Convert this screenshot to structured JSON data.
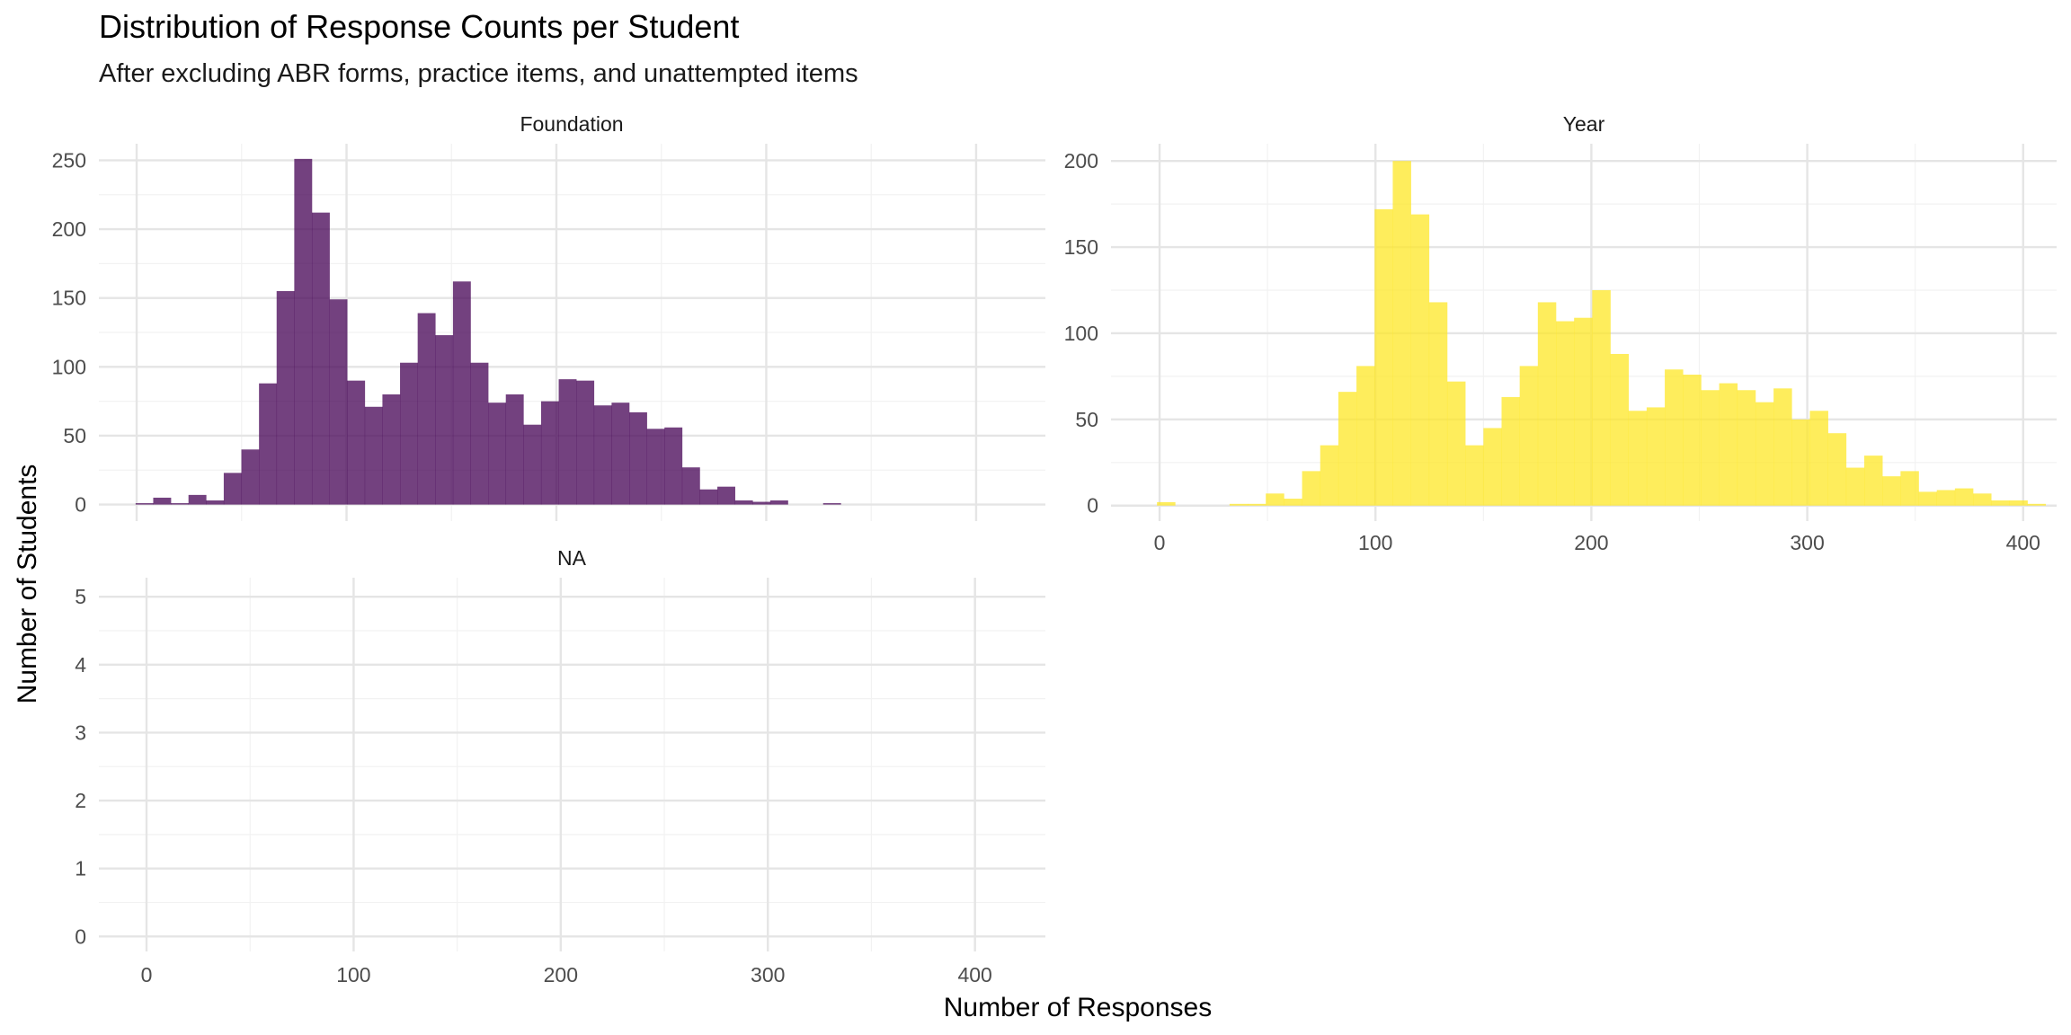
{
  "chart_data": {
    "type": "bar",
    "title": "Distribution of Response Counts per Student",
    "subtitle": "After excluding ABR forms, practice items, and unattempted items",
    "xlabel": "Number of Responses",
    "ylabel": "Number of Students",
    "binwidth": 8.4,
    "grid": true,
    "legend": "none",
    "panels": [
      {
        "name": "Foundation",
        "color": "#440154",
        "xlim": [
          -18,
          433
        ],
        "ylim": [
          -12,
          262
        ],
        "xticks": [
          0,
          100,
          200,
          300,
          400
        ],
        "yticks": [
          0,
          50,
          100,
          150,
          200,
          250
        ],
        "show_x_ticks": false,
        "bins": [
          [
            -0.5,
            1
          ],
          [
            7.9,
            5
          ],
          [
            16.3,
            1
          ],
          [
            24.7,
            7
          ],
          [
            33.1,
            3
          ],
          [
            41.5,
            23
          ],
          [
            49.9,
            40
          ],
          [
            58.3,
            88
          ],
          [
            66.7,
            155
          ],
          [
            75.1,
            251
          ],
          [
            83.5,
            212
          ],
          [
            91.9,
            149
          ],
          [
            100.3,
            90
          ],
          [
            108.7,
            71
          ],
          [
            117.1,
            80
          ],
          [
            125.5,
            103
          ],
          [
            133.9,
            139
          ],
          [
            142.3,
            123
          ],
          [
            150.7,
            162
          ],
          [
            159.1,
            103
          ],
          [
            167.5,
            74
          ],
          [
            175.9,
            80
          ],
          [
            184.3,
            58
          ],
          [
            192.7,
            75
          ],
          [
            201.1,
            91
          ],
          [
            209.5,
            90
          ],
          [
            217.9,
            72
          ],
          [
            226.3,
            74
          ],
          [
            234.7,
            67
          ],
          [
            243.1,
            55
          ],
          [
            251.5,
            56
          ],
          [
            259.9,
            27
          ],
          [
            268.3,
            11
          ],
          [
            276.7,
            13
          ],
          [
            285.1,
            3
          ],
          [
            293.5,
            2
          ],
          [
            301.9,
            3
          ],
          [
            310.3,
            0
          ],
          [
            318.7,
            0
          ],
          [
            327.1,
            1
          ]
        ]
      },
      {
        "name": "Year",
        "color": "#fde725",
        "xlim": [
          -22.5,
          415.5
        ],
        "ylim": [
          -9,
          210
        ],
        "xticks": [
          0,
          100,
          200,
          300,
          400
        ],
        "yticks": [
          0,
          50,
          100,
          150,
          200
        ],
        "show_x_ticks": true,
        "bins": [
          [
            -1.2,
            2
          ],
          [
            7.2,
            0
          ],
          [
            15.6,
            0
          ],
          [
            24.0,
            0
          ],
          [
            32.4,
            1
          ],
          [
            40.8,
            1
          ],
          [
            49.2,
            7
          ],
          [
            57.6,
            4
          ],
          [
            66.0,
            20
          ],
          [
            74.4,
            35
          ],
          [
            82.8,
            66
          ],
          [
            91.2,
            81
          ],
          [
            99.6,
            172
          ],
          [
            108.0,
            200
          ],
          [
            116.4,
            169
          ],
          [
            124.8,
            118
          ],
          [
            133.2,
            72
          ],
          [
            141.6,
            35
          ],
          [
            150.0,
            45
          ],
          [
            158.4,
            63
          ],
          [
            166.8,
            81
          ],
          [
            175.2,
            118
          ],
          [
            183.6,
            107
          ],
          [
            192.0,
            109
          ],
          [
            200.4,
            125
          ],
          [
            208.8,
            88
          ],
          [
            217.2,
            55
          ],
          [
            225.6,
            57
          ],
          [
            234.0,
            79
          ],
          [
            242.4,
            76
          ],
          [
            250.8,
            67
          ],
          [
            259.2,
            71
          ],
          [
            267.6,
            67
          ],
          [
            276.0,
            60
          ],
          [
            284.4,
            68
          ],
          [
            292.8,
            50
          ],
          [
            301.2,
            55
          ],
          [
            309.6,
            42
          ],
          [
            318.0,
            22
          ],
          [
            326.4,
            29
          ],
          [
            334.8,
            17
          ],
          [
            343.2,
            20
          ],
          [
            351.6,
            8
          ],
          [
            360.0,
            9
          ],
          [
            368.4,
            10
          ],
          [
            376.8,
            7
          ],
          [
            385.2,
            3
          ],
          [
            393.6,
            3
          ],
          [
            402.0,
            1
          ]
        ]
      },
      {
        "name": "NA",
        "color": "#21908c",
        "xlim": [
          -23,
          434
        ],
        "ylim": [
          -0.22,
          5.28
        ],
        "xticks": [
          0,
          100,
          200,
          300,
          400
        ],
        "yticks": [
          0,
          1,
          2,
          3,
          4,
          5
        ],
        "show_x_ticks": true,
        "bins": []
      }
    ]
  }
}
